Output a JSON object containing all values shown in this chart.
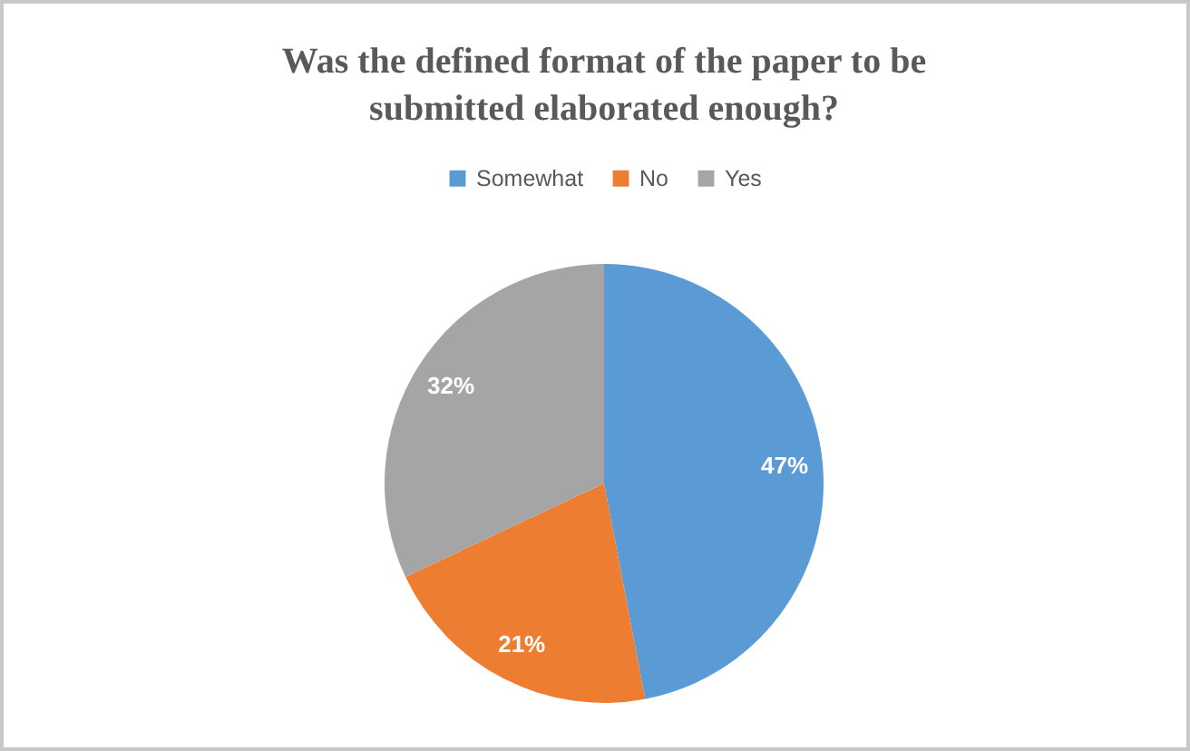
{
  "chart_data": {
    "type": "pie",
    "title": "Was the defined format of the paper to be submitted elaborated enough?",
    "categories": [
      "Somewhat",
      "No",
      "Yes"
    ],
    "values": [
      47,
      21,
      32
    ],
    "colors": [
      "#5b9bd5",
      "#ed7d31",
      "#a5a5a5"
    ],
    "value_labels": [
      "47%",
      "21%",
      "32%"
    ],
    "legend": "top"
  }
}
